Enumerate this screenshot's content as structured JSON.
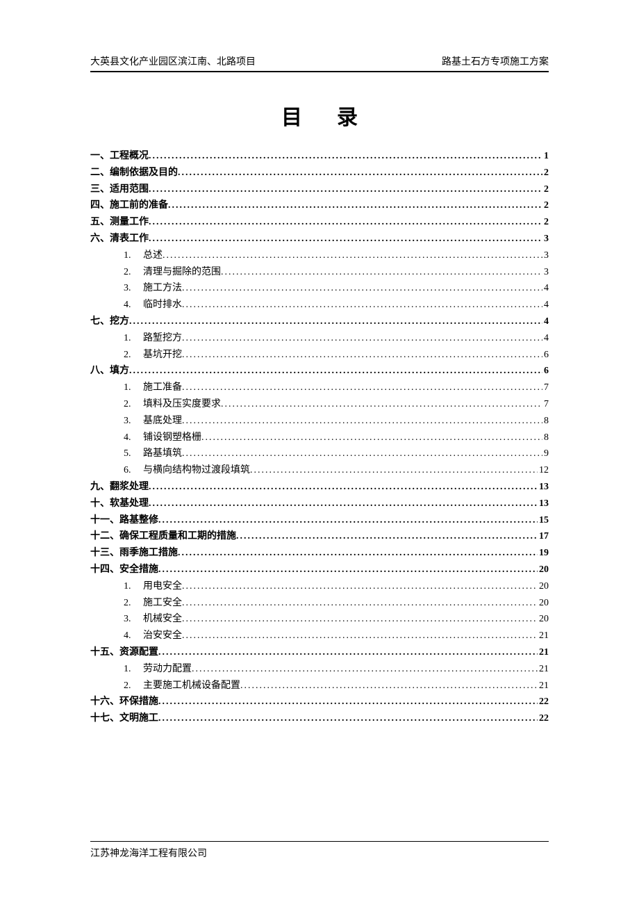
{
  "header": {
    "left": "大英县文化产业园区滨江南、北路项目",
    "right": "路基土石方专项施工方案"
  },
  "title": "目录",
  "toc": [
    {
      "level": 1,
      "label": "一、工程概况",
      "page": "1"
    },
    {
      "level": 1,
      "label": "二、编制依据及目的",
      "page": "2"
    },
    {
      "level": 1,
      "label": "三、适用范围",
      "page": "2"
    },
    {
      "level": 1,
      "label": "四、施工前的准备",
      "page": "2"
    },
    {
      "level": 1,
      "label": "五、测量工作",
      "page": "2"
    },
    {
      "level": 1,
      "label": "六、清表工作",
      "page": "3"
    },
    {
      "level": 2,
      "num": "1.",
      "label": "总述",
      "page": "3"
    },
    {
      "level": 2,
      "num": "2.",
      "label": "清理与掘除的范围",
      "page": "3"
    },
    {
      "level": 2,
      "num": "3.",
      "label": "施工方法",
      "page": "4"
    },
    {
      "level": 2,
      "num": "4.",
      "label": "临时排水",
      "page": "4"
    },
    {
      "level": 1,
      "label": "七、挖方",
      "page": "4"
    },
    {
      "level": 2,
      "num": "1.",
      "label": "路堑挖方",
      "page": "4"
    },
    {
      "level": 2,
      "num": "2.",
      "label": "基坑开挖",
      "page": "6"
    },
    {
      "level": 1,
      "label": "八、填方",
      "page": "6"
    },
    {
      "level": 2,
      "num": "1.",
      "label": "施工准备",
      "page": "7"
    },
    {
      "level": 2,
      "num": "2.",
      "label": "填料及压实度要求",
      "page": "7"
    },
    {
      "level": 2,
      "num": "3.",
      "label": "基底处理",
      "page": "8"
    },
    {
      "level": 2,
      "num": "4.",
      "label": "铺设钢塑格栅",
      "page": "8"
    },
    {
      "level": 2,
      "num": "5.",
      "label": "路基填筑",
      "page": "9"
    },
    {
      "level": 2,
      "num": "6.",
      "label": "与横向结构物过渡段填筑",
      "page": "12"
    },
    {
      "level": 1,
      "label": "九、翻浆处理",
      "page": "13"
    },
    {
      "level": 1,
      "label": "十、软基处理",
      "page": "13"
    },
    {
      "level": 1,
      "label": "十一、路基整修",
      "page": "15"
    },
    {
      "level": 1,
      "label": "十二、确保工程质量和工期的措施 ",
      "page": "17"
    },
    {
      "level": 1,
      "label": "十三、雨季施工措施",
      "page": "19"
    },
    {
      "level": 1,
      "label": "十四、安全措施",
      "page": "20"
    },
    {
      "level": 2,
      "num": "1.",
      "label": "用电安全",
      "page": "20"
    },
    {
      "level": 2,
      "num": "2.",
      "label": "施工安全",
      "page": "20"
    },
    {
      "level": 2,
      "num": "3.",
      "label": "机械安全",
      "page": "20"
    },
    {
      "level": 2,
      "num": "4.",
      "label": "治安安全",
      "page": "21"
    },
    {
      "level": 1,
      "label": "十五、资源配置",
      "page": "21"
    },
    {
      "level": 2,
      "num": "1.",
      "label": "劳动力配置",
      "page": "21"
    },
    {
      "level": 2,
      "num": "2.",
      "label": "主要施工机械设备配置",
      "page": "21"
    },
    {
      "level": 1,
      "label": "十六、环保措施",
      "page": "22"
    },
    {
      "level": 1,
      "label": "十七、文明施工",
      "page": "22"
    }
  ],
  "footer": "江苏神龙海洋工程有限公司"
}
